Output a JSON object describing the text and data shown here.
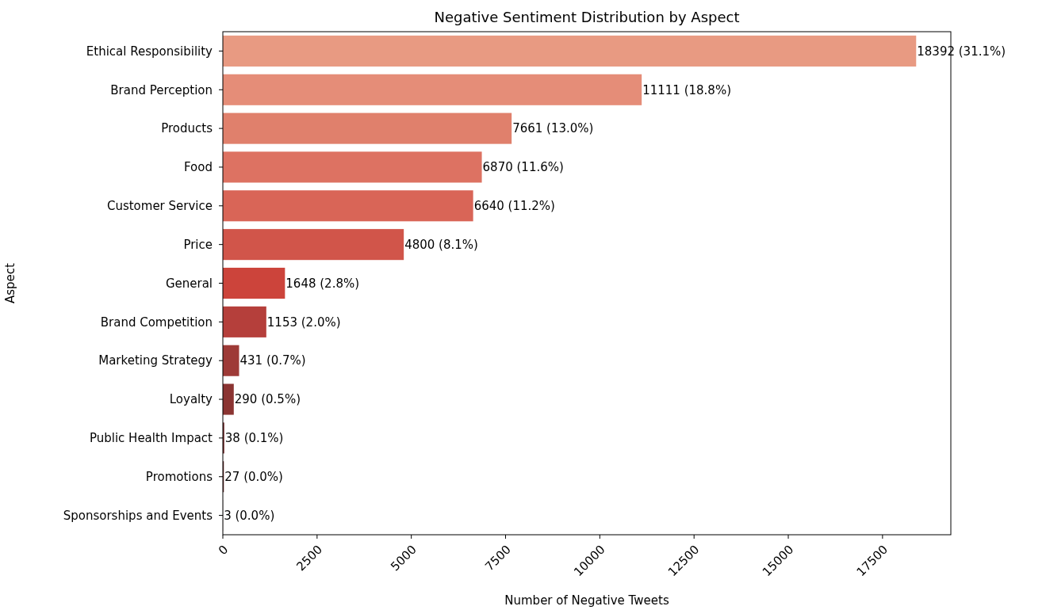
{
  "chart_data": {
    "type": "bar",
    "orientation": "horizontal",
    "title": "Negative Sentiment Distribution by Aspect",
    "xlabel": "Number of Negative Tweets",
    "ylabel": "Aspect",
    "categories": [
      "Ethical Responsibility",
      "Brand Perception",
      "Products",
      "Food",
      "Customer Service",
      "Price",
      "General",
      "Brand Competition",
      "Marketing Strategy",
      "Loyalty",
      "Public Health Impact",
      "Promotions",
      "Sponsorships and Events"
    ],
    "values": [
      18392,
      11111,
      7661,
      6870,
      6640,
      4800,
      1648,
      1153,
      431,
      290,
      38,
      27,
      3
    ],
    "value_labels": [
      "18392 (31.1%)",
      "11111 (18.8%)",
      "7661 (13.0%)",
      "6870 (11.6%)",
      "6640 (11.2%)",
      "4800 (8.1%)",
      "1648 (2.8%)",
      "1153 (2.0%)",
      "431 (0.7%)",
      "290 (0.5%)",
      "38 (0.1%)",
      "27 (0.0%)",
      "3 (0.0%)"
    ],
    "colors": [
      "#e89a82",
      "#e58d78",
      "#e0806c",
      "#dd7262",
      "#d96557",
      "#d1554a",
      "#cc443b",
      "#b53f3b",
      "#9e3a37",
      "#8b3432",
      "#742d2d",
      "#5e2525",
      "#4a1e1e"
    ],
    "xlim": [
      0,
      19312
    ],
    "xticks": [
      0,
      2500,
      5000,
      7500,
      10000,
      12500,
      15000,
      17500
    ],
    "grid": false
  }
}
